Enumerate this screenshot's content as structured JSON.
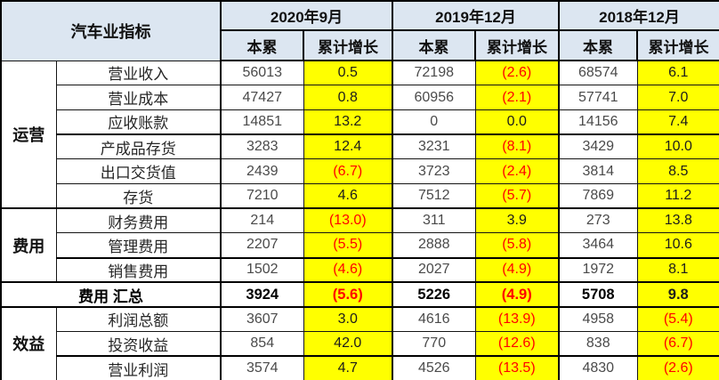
{
  "table": {
    "corner_label": "汽车业指标",
    "col_groups": [
      {
        "label": "2020年9月",
        "sub": [
          "本累",
          "累计增长"
        ]
      },
      {
        "label": "2019年12月",
        "sub": [
          "本累",
          "累计增长"
        ]
      },
      {
        "label": "2018年12月",
        "sub": [
          "本累",
          "累计增长"
        ]
      }
    ],
    "row_groups": [
      {
        "label": "运营",
        "rows": [
          {
            "label": "营业收入",
            "values": [
              "56013",
              "0.5",
              "72198",
              "(2.6)",
              "68574",
              "6.1"
            ]
          },
          {
            "label": "营业成本",
            "values": [
              "47427",
              "0.8",
              "60956",
              "(2.1)",
              "57741",
              "7.0"
            ]
          },
          {
            "label": "应收账款",
            "values": [
              "14851",
              "13.2",
              "0",
              "0.0",
              "14156",
              "7.4"
            ]
          },
          {
            "label": "产成品存货",
            "values": [
              "3283",
              "12.4",
              "3231",
              "(8.1)",
              "3429",
              "10.0"
            ]
          },
          {
            "label": "出口交货值",
            "values": [
              "2439",
              "(6.7)",
              "3723",
              "(2.4)",
              "3814",
              "8.5"
            ]
          },
          {
            "label": "存货",
            "values": [
              "7210",
              "4.6",
              "7512",
              "(5.7)",
              "7869",
              "11.2"
            ]
          }
        ]
      },
      {
        "label": "费用",
        "rows": [
          {
            "label": "财务费用",
            "values": [
              "214",
              "(13.0)",
              "311",
              "3.9",
              "273",
              "13.8"
            ]
          },
          {
            "label": "管理费用",
            "values": [
              "2207",
              "(5.5)",
              "2888",
              "(5.8)",
              "3464",
              "10.6"
            ]
          },
          {
            "label": "销售费用",
            "values": [
              "1502",
              "(4.6)",
              "2027",
              "(4.9)",
              "1972",
              "8.1"
            ]
          }
        ]
      },
      {
        "summary": true,
        "label": "费用 汇总",
        "values": [
          "3924",
          "(5.6)",
          "5226",
          "(4.9)",
          "5708",
          "9.8"
        ]
      },
      {
        "label": "效益",
        "rows": [
          {
            "label": "利润总额",
            "values": [
              "3607",
              "3.0",
              "4616",
              "(13.9)",
              "4958",
              "(5.4)"
            ]
          },
          {
            "label": "投资收益",
            "values": [
              "854",
              "42.0",
              "770",
              "(12.6)",
              "838",
              "(6.7)"
            ]
          },
          {
            "label": "营业利润",
            "values": [
              "3574",
              "4.7",
              "4526",
              "(13.5)",
              "4830",
              "(2.6)"
            ]
          }
        ]
      }
    ],
    "colors": {
      "header_bg": "#DCE6F1",
      "highlight": "#FFFF00",
      "negative_text": "#FF0000"
    }
  }
}
